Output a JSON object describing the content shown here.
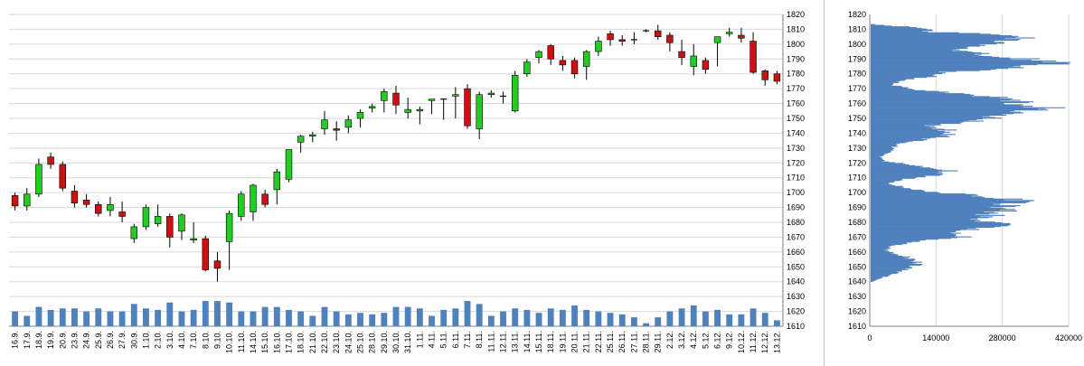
{
  "chart_data": [
    {
      "type": "candlestick",
      "ylim": [
        1610,
        1820
      ],
      "yticks": [
        1610,
        1620,
        1630,
        1640,
        1650,
        1660,
        1670,
        1680,
        1690,
        1700,
        1710,
        1720,
        1730,
        1740,
        1750,
        1760,
        1770,
        1780,
        1790,
        1800,
        1810,
        1820
      ],
      "volume_max": 1640,
      "colors": {
        "up": "#22cc22",
        "down": "#cc1111",
        "volume": "#4f81bd",
        "grid": "#d9d9d9"
      },
      "candles": [
        {
          "d": "16.9.",
          "o": 1698,
          "h": 1700,
          "l": 1688,
          "c": 1691,
          "v": 1620
        },
        {
          "d": "17.9.",
          "o": 1691,
          "h": 1703,
          "l": 1688,
          "c": 1699,
          "v": 1617
        },
        {
          "d": "18.9.",
          "o": 1699,
          "h": 1723,
          "l": 1697,
          "c": 1719,
          "v": 1623
        },
        {
          "d": "19.9.",
          "o": 1724,
          "h": 1727,
          "l": 1716,
          "c": 1719,
          "v": 1621
        },
        {
          "d": "20.9.",
          "o": 1719,
          "h": 1721,
          "l": 1701,
          "c": 1703,
          "v": 1622
        },
        {
          "d": "23.9.",
          "o": 1701,
          "h": 1705,
          "l": 1690,
          "c": 1693,
          "v": 1622
        },
        {
          "d": "24.9.",
          "o": 1695,
          "h": 1699,
          "l": 1690,
          "c": 1692,
          "v": 1620
        },
        {
          "d": "25.9.",
          "o": 1692,
          "h": 1694,
          "l": 1684,
          "c": 1686,
          "v": 1622
        },
        {
          "d": "26.9.",
          "o": 1688,
          "h": 1697,
          "l": 1684,
          "c": 1692,
          "v": 1620
        },
        {
          "d": "27.9.",
          "o": 1687,
          "h": 1694,
          "l": 1680,
          "c": 1684,
          "v": 1620
        },
        {
          "d": "30.9.",
          "o": 1669,
          "h": 1679,
          "l": 1666,
          "c": 1677,
          "v": 1625
        },
        {
          "d": "1.10.",
          "o": 1677,
          "h": 1692,
          "l": 1675,
          "c": 1690,
          "v": 1622
        },
        {
          "d": "2.10.",
          "o": 1679,
          "h": 1692,
          "l": 1677,
          "c": 1684,
          "v": 1621
        },
        {
          "d": "3.10.",
          "o": 1684,
          "h": 1686,
          "l": 1663,
          "c": 1670,
          "v": 1626
        },
        {
          "d": "4.10.",
          "o": 1674,
          "h": 1686,
          "l": 1668,
          "c": 1685,
          "v": 1620
        },
        {
          "d": "7.10.",
          "o": 1668,
          "h": 1680,
          "l": 1666,
          "c": 1669,
          "v": 1621
        },
        {
          "d": "8.10.",
          "o": 1669,
          "h": 1671,
          "l": 1647,
          "c": 1648,
          "v": 1627
        },
        {
          "d": "9.10.",
          "o": 1654,
          "h": 1660,
          "l": 1640,
          "c": 1649,
          "v": 1627
        },
        {
          "d": "10.10.",
          "o": 1667,
          "h": 1688,
          "l": 1648,
          "c": 1686,
          "v": 1626
        },
        {
          "d": "11.10.",
          "o": 1684,
          "h": 1701,
          "l": 1681,
          "c": 1699,
          "v": 1620
        },
        {
          "d": "14.10.",
          "o": 1687,
          "h": 1706,
          "l": 1681,
          "c": 1705,
          "v": 1620
        },
        {
          "d": "15.10.",
          "o": 1699,
          "h": 1702,
          "l": 1690,
          "c": 1692,
          "v": 1623
        },
        {
          "d": "16.10.",
          "o": 1702,
          "h": 1716,
          "l": 1692,
          "c": 1714,
          "v": 1623
        },
        {
          "d": "17.10.",
          "o": 1709,
          "h": 1728,
          "l": 1707,
          "c": 1729,
          "v": 1621
        },
        {
          "d": "18.10.",
          "o": 1734,
          "h": 1739,
          "l": 1727,
          "c": 1738,
          "v": 1620
        },
        {
          "d": "21.10.",
          "o": 1738,
          "h": 1741,
          "l": 1734,
          "c": 1739,
          "v": 1617
        },
        {
          "d": "22.10.",
          "o": 1743,
          "h": 1755,
          "l": 1739,
          "c": 1749,
          "v": 1623
        },
        {
          "d": "23.10.",
          "o": 1743,
          "h": 1748,
          "l": 1735,
          "c": 1742,
          "v": 1620
        },
        {
          "d": "24.10.",
          "o": 1744,
          "h": 1752,
          "l": 1740,
          "c": 1749,
          "v": 1618
        },
        {
          "d": "25.10.",
          "o": 1750,
          "h": 1756,
          "l": 1744,
          "c": 1754,
          "v": 1619
        },
        {
          "d": "28.10.",
          "o": 1757,
          "h": 1760,
          "l": 1754,
          "c": 1758,
          "v": 1618
        },
        {
          "d": "29.10.",
          "o": 1762,
          "h": 1770,
          "l": 1754,
          "c": 1768,
          "v": 1619
        },
        {
          "d": "30.10.",
          "o": 1767,
          "h": 1772,
          "l": 1753,
          "c": 1759,
          "v": 1623
        },
        {
          "d": "31.10.",
          "o": 1754,
          "h": 1764,
          "l": 1750,
          "c": 1756,
          "v": 1623
        },
        {
          "d": "1.11.",
          "o": 1755,
          "h": 1758,
          "l": 1746,
          "c": 1756,
          "v": 1622
        },
        {
          "d": "4.11.",
          "o": 1762,
          "h": 1763,
          "l": 1753,
          "c": 1763,
          "v": 1617
        },
        {
          "d": "5.11.",
          "o": 1763,
          "h": 1763,
          "l": 1749,
          "c": 1763,
          "v": 1621
        },
        {
          "d": "6.11.",
          "o": 1765,
          "h": 1771,
          "l": 1750,
          "c": 1766,
          "v": 1622
        },
        {
          "d": "7.11.",
          "o": 1770,
          "h": 1773,
          "l": 1743,
          "c": 1745,
          "v": 1627
        },
        {
          "d": "8.11.",
          "o": 1743,
          "h": 1768,
          "l": 1736,
          "c": 1766,
          "v": 1625
        },
        {
          "d": "11.11.",
          "o": 1766,
          "h": 1769,
          "l": 1764,
          "c": 1767,
          "v": 1617
        },
        {
          "d": "12.11.",
          "o": 1765,
          "h": 1768,
          "l": 1760,
          "c": 1765,
          "v": 1620
        },
        {
          "d": "13.11.",
          "o": 1755,
          "h": 1782,
          "l": 1754,
          "c": 1779,
          "v": 1622
        },
        {
          "d": "14.11.",
          "o": 1780,
          "h": 1790,
          "l": 1778,
          "c": 1788,
          "v": 1621
        },
        {
          "d": "15.11.",
          "o": 1791,
          "h": 1796,
          "l": 1787,
          "c": 1795,
          "v": 1619
        },
        {
          "d": "18.11.",
          "o": 1799,
          "h": 1800,
          "l": 1786,
          "c": 1790,
          "v": 1622
        },
        {
          "d": "19.11.",
          "o": 1789,
          "h": 1792,
          "l": 1782,
          "c": 1786,
          "v": 1621
        },
        {
          "d": "20.11.",
          "o": 1789,
          "h": 1791,
          "l": 1777,
          "c": 1780,
          "v": 1624
        },
        {
          "d": "21.11.",
          "o": 1785,
          "h": 1796,
          "l": 1776,
          "c": 1795,
          "v": 1621
        },
        {
          "d": "22.11.",
          "o": 1795,
          "h": 1805,
          "l": 1792,
          "c": 1802,
          "v": 1620
        },
        {
          "d": "25.11.",
          "o": 1807,
          "h": 1809,
          "l": 1799,
          "c": 1803,
          "v": 1619
        },
        {
          "d": "26.11.",
          "o": 1803,
          "h": 1806,
          "l": 1799,
          "c": 1802,
          "v": 1618
        },
        {
          "d": "27.11.",
          "o": 1803,
          "h": 1808,
          "l": 1800,
          "c": 1803,
          "v": 1616
        },
        {
          "d": "28.11.",
          "o": 1809,
          "h": 1810,
          "l": 1808,
          "c": 1809,
          "v": 1612
        },
        {
          "d": "29.11.",
          "o": 1809,
          "h": 1813,
          "l": 1803,
          "c": 1805,
          "v": 1616
        },
        {
          "d": "2.12.",
          "o": 1806,
          "h": 1808,
          "l": 1795,
          "c": 1801,
          "v": 1620
        },
        {
          "d": "3.12.",
          "o": 1795,
          "h": 1803,
          "l": 1786,
          "c": 1791,
          "v": 1622
        },
        {
          "d": "4.12.",
          "o": 1785,
          "h": 1800,
          "l": 1779,
          "c": 1792,
          "v": 1624
        },
        {
          "d": "5.12.",
          "o": 1789,
          "h": 1791,
          "l": 1780,
          "c": 1783,
          "v": 1620
        },
        {
          "d": "6.12.",
          "o": 1801,
          "h": 1805,
          "l": 1785,
          "c": 1805,
          "v": 1621
        },
        {
          "d": "9.12.",
          "o": 1807,
          "h": 1811,
          "l": 1805,
          "c": 1808,
          "v": 1618
        },
        {
          "d": "10.12.",
          "o": 1806,
          "h": 1811,
          "l": 1801,
          "c": 1804,
          "v": 1618
        },
        {
          "d": "11.12.",
          "o": 1802,
          "h": 1808,
          "l": 1780,
          "c": 1781,
          "v": 1622
        },
        {
          "d": "12.12.",
          "o": 1782,
          "h": 1783,
          "l": 1772,
          "c": 1776,
          "v": 1619
        },
        {
          "d": "13.12.",
          "o": 1780,
          "h": 1782,
          "l": 1773,
          "c": 1775,
          "v": 1614
        }
      ]
    },
    {
      "type": "bar",
      "orientation": "horizontal",
      "ylim": [
        1610,
        1820
      ],
      "xlim": [
        0,
        420000
      ],
      "xticks": [
        0,
        140000,
        280000,
        420000
      ],
      "yticks": [
        1610,
        1620,
        1630,
        1640,
        1650,
        1660,
        1670,
        1680,
        1690,
        1700,
        1710,
        1720,
        1730,
        1740,
        1750,
        1760,
        1770,
        1780,
        1790,
        1800,
        1810,
        1820
      ],
      "color": "#4f81bd",
      "profile_points": [
        [
          1640,
          5000
        ],
        [
          1643,
          30000
        ],
        [
          1646,
          60000
        ],
        [
          1649,
          90000
        ],
        [
          1652,
          105000
        ],
        [
          1655,
          95000
        ],
        [
          1658,
          60000
        ],
        [
          1661,
          35000
        ],
        [
          1664,
          45000
        ],
        [
          1667,
          110000
        ],
        [
          1670,
          200000
        ],
        [
          1673,
          180000
        ],
        [
          1676,
          250000
        ],
        [
          1679,
          290000
        ],
        [
          1682,
          240000
        ],
        [
          1685,
          270000
        ],
        [
          1688,
          290000
        ],
        [
          1691,
          300000
        ],
        [
          1694,
          340000
        ],
        [
          1697,
          280000
        ],
        [
          1700,
          150000
        ],
        [
          1703,
          80000
        ],
        [
          1706,
          40000
        ],
        [
          1709,
          80000
        ],
        [
          1712,
          150000
        ],
        [
          1715,
          180000
        ],
        [
          1718,
          100000
        ],
        [
          1721,
          30000
        ],
        [
          1724,
          20000
        ],
        [
          1727,
          40000
        ],
        [
          1730,
          50000
        ],
        [
          1733,
          60000
        ],
        [
          1736,
          130000
        ],
        [
          1739,
          180000
        ],
        [
          1742,
          170000
        ],
        [
          1745,
          130000
        ],
        [
          1748,
          230000
        ],
        [
          1751,
          280000
        ],
        [
          1754,
          350000
        ],
        [
          1757,
          390000
        ],
        [
          1760,
          330000
        ],
        [
          1763,
          330000
        ],
        [
          1766,
          200000
        ],
        [
          1769,
          110000
        ],
        [
          1772,
          50000
        ],
        [
          1775,
          60000
        ],
        [
          1778,
          130000
        ],
        [
          1781,
          170000
        ],
        [
          1784,
          330000
        ],
        [
          1787,
          410000
        ],
        [
          1790,
          340000
        ],
        [
          1793,
          240000
        ],
        [
          1796,
          200000
        ],
        [
          1799,
          250000
        ],
        [
          1802,
          320000
        ],
        [
          1805,
          370000
        ],
        [
          1808,
          140000
        ],
        [
          1811,
          100000
        ],
        [
          1813,
          10000
        ]
      ]
    }
  ]
}
